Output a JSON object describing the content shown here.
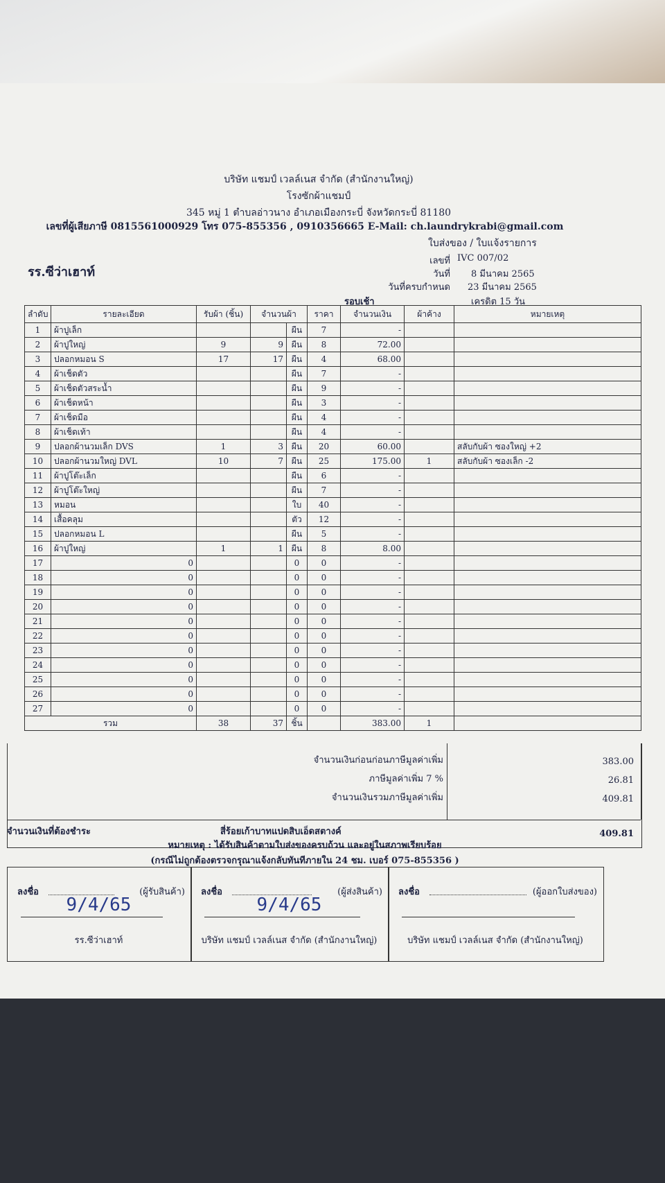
{
  "header": {
    "company": "บริษัท แชมป์ เวลล์เนส จำกัด (สำนักงานใหญ่)",
    "branch": "โรงซักผ้าแชมป์",
    "address": "345 หมู่ 1 ตำบลอ่าวนาง อำเภอเมืองกระบี่ จังหวัดกระบี่ 81180",
    "tax_line": "เลขที่ผู้เสียภาษี 0815561000929 โทร 075-855356 , 0910356665 E-Mail: ch.laundrykrabi@gmail.com",
    "doc_title": "ใบส่งของ / ใบแจ้งรายการ"
  },
  "customer": "รร.ซีว่าเฮาท์",
  "meta": {
    "no_label": "เลขที่",
    "no": "IVC 007/02",
    "date_label": "วันที่",
    "date": "8 มีนาคม 2565",
    "due_label": "วันที่ครบกำหนด",
    "due": "23 มีนาคม 2565",
    "round": "รอบเช้า",
    "credit": "เครดิต 15 วัน"
  },
  "table": {
    "columns": [
      "ลำดับ",
      "รายละเอียด",
      "รับผ้า (ชิ้น)",
      "จำนวนผ้า",
      "ราคา",
      "จำนวนเงิน",
      "ผ้าค้าง",
      "หมายเหตุ"
    ],
    "rows": [
      [
        1,
        "ผ้าปูเล็ก",
        null,
        null,
        "ผืน",
        7,
        "-",
        null,
        null
      ],
      [
        2,
        "ผ้าปูใหญ่",
        9,
        9,
        "ผืน",
        8,
        "72.00",
        null,
        null
      ],
      [
        3,
        "ปลอกหมอน S",
        17,
        17,
        "ผืน",
        4,
        "68.00",
        null,
        null
      ],
      [
        4,
        "ผ้าเช็ดตัว",
        null,
        null,
        "ผืน",
        7,
        "-",
        null,
        null
      ],
      [
        5,
        "ผ้าเช็ดตัวสระน้ำ",
        null,
        null,
        "ผืน",
        9,
        "-",
        null,
        null
      ],
      [
        6,
        "ผ้าเช็ดหน้า",
        null,
        null,
        "ผืน",
        3,
        "-",
        null,
        null
      ],
      [
        7,
        "ผ้าเช็ดมือ",
        null,
        null,
        "ผืน",
        4,
        "-",
        null,
        null
      ],
      [
        8,
        "ผ้าเช็ดเท้า",
        null,
        null,
        "ผืน",
        4,
        "-",
        null,
        null
      ],
      [
        9,
        "ปลอกผ้านวมเล็ก DVS",
        1,
        3,
        "ผืน",
        20,
        "60.00",
        null,
        "สลับกับผ้า ซองใหญ่ +2"
      ],
      [
        10,
        "ปลอกผ้านวมใหญ่ DVL",
        10,
        7,
        "ผืน",
        25,
        "175.00",
        1,
        "สลับกับผ้า ซองเล็ก -2"
      ],
      [
        11,
        "ผ้าปูโต๊ะเล็ก",
        null,
        null,
        "ผืน",
        6,
        "-",
        null,
        null
      ],
      [
        12,
        "ผ้าปูโต๊ะใหญ่",
        null,
        null,
        "ผืน",
        7,
        "-",
        null,
        null
      ],
      [
        13,
        "หมอน",
        null,
        null,
        "ใบ",
        40,
        "-",
        null,
        null
      ],
      [
        14,
        "เสื้อคลุม",
        null,
        null,
        "ตัว",
        12,
        "-",
        null,
        null
      ],
      [
        15,
        "ปลอกหมอน L",
        null,
        null,
        "ผืน",
        5,
        "-",
        null,
        null
      ],
      [
        16,
        "ผ้าปูใหญ่",
        1,
        1,
        "ผืน",
        8,
        "8.00",
        null,
        null
      ],
      [
        17,
        0,
        null,
        null,
        0,
        0,
        "-",
        null,
        null
      ],
      [
        18,
        0,
        null,
        null,
        0,
        0,
        "-",
        null,
        null
      ],
      [
        19,
        0,
        null,
        null,
        0,
        0,
        "-",
        null,
        null
      ],
      [
        20,
        0,
        null,
        null,
        0,
        0,
        "-",
        null,
        null
      ],
      [
        21,
        0,
        null,
        null,
        0,
        0,
        "-",
        null,
        null
      ],
      [
        22,
        0,
        null,
        null,
        0,
        0,
        "-",
        null,
        null
      ],
      [
        23,
        0,
        null,
        null,
        0,
        0,
        "-",
        null,
        null
      ],
      [
        24,
        0,
        null,
        null,
        0,
        0,
        "-",
        null,
        null
      ],
      [
        25,
        0,
        null,
        null,
        0,
        0,
        "-",
        null,
        null
      ],
      [
        26,
        0,
        null,
        null,
        0,
        0,
        "-",
        null,
        null
      ],
      [
        27,
        0,
        null,
        null,
        0,
        0,
        "-",
        null,
        null
      ]
    ],
    "total": {
      "label": "รวม",
      "received": 38,
      "count": 37,
      "unit": "ชิ้น",
      "amount": "383.00",
      "pending": 1
    }
  },
  "summary": [
    {
      "label": "จำนวนเงินก่อนก่อนภาษีมูลค่าเพิ่ม",
      "value": "383.00"
    },
    {
      "label": "ภาษีมูลค่าเพิ่ม 7 %",
      "value": "26.81"
    },
    {
      "label": "จำนวนเงินรวมภาษีมูลค่าเพิ่ม",
      "value": "409.81"
    }
  ],
  "payable": {
    "label": "จำนวนเงินที่ต้องชำระ",
    "words": "สี่ร้อยเก้าบาทแปดสิบเอ็ดสตางค์",
    "value": "409.81"
  },
  "notes": [
    "หมายเหตุ : ได้รับสินค้าตามใบส่งของครบถ้วน และอยู่ในสภาพเรียบร้อย",
    "(กรณีไม่ถูกต้องตรวจกรุณาแจ้งกลับทันทีภายใน 24 ชม. เบอร์ 075-855356 )"
  ],
  "signatures": [
    {
      "sign": "ลงชื่อ",
      "role": "(ผู้รับสินค้า)",
      "date": "9/4/65",
      "org": "รร.ซีว่าเฮาท์"
    },
    {
      "sign": "ลงชื่อ",
      "role": "(ผู้ส่งสินค้า)",
      "date": "9/4/65",
      "org": "บริษัท แชมป์ เวลล์เนส จำกัด (สำนักงานใหญ่)"
    },
    {
      "sign": "ลงชื่อ",
      "role": "(ผู้ออกใบส่งของ)",
      "date": null,
      "org": "บริษัท แชมป์ เวลล์เนส จำกัด (สำนักงานใหญ่)"
    }
  ]
}
